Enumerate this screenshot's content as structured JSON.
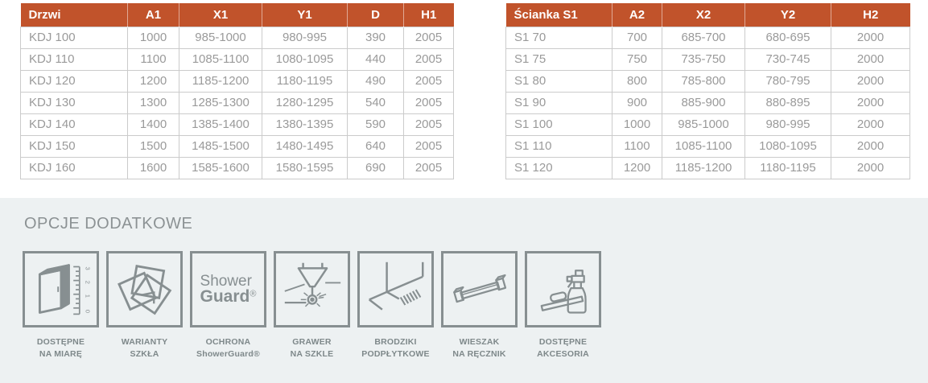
{
  "colors": {
    "header_bg": "#c1532b",
    "header_text": "#ffffff",
    "cell_text": "#9a9a9a",
    "table_border": "#cbcbcb",
    "options_section_bg": "#edf1f2",
    "icon_gray": "#878f91"
  },
  "tables": [
    {
      "name": "drzwi",
      "headers": [
        "Drzwi",
        "A1",
        "X1",
        "Y1",
        "D",
        "H1"
      ],
      "rows": [
        [
          "KDJ 100",
          "1000",
          "985-1000",
          "980-995",
          "390",
          "2005"
        ],
        [
          "KDJ 110",
          "1100",
          "1085-1100",
          "1080-1095",
          "440",
          "2005"
        ],
        [
          "KDJ 120",
          "1200",
          "1185-1200",
          "1180-1195",
          "490",
          "2005"
        ],
        [
          "KDJ 130",
          "1300",
          "1285-1300",
          "1280-1295",
          "540",
          "2005"
        ],
        [
          "KDJ 140",
          "1400",
          "1385-1400",
          "1380-1395",
          "590",
          "2005"
        ],
        [
          "KDJ 150",
          "1500",
          "1485-1500",
          "1480-1495",
          "640",
          "2005"
        ],
        [
          "KDJ 160",
          "1600",
          "1585-1600",
          "1580-1595",
          "690",
          "2005"
        ]
      ]
    },
    {
      "name": "scianka-s1",
      "headers": [
        "Ścianka S1",
        "A2",
        "X2",
        "Y2",
        "H2"
      ],
      "rows": [
        [
          "S1 70",
          "700",
          "685-700",
          "680-695",
          "2000"
        ],
        [
          "S1 75",
          "750",
          "735-750",
          "730-745",
          "2000"
        ],
        [
          "S1 80",
          "800",
          "785-800",
          "780-795",
          "2000"
        ],
        [
          "S1 90",
          "900",
          "885-900",
          "880-895",
          "2000"
        ],
        [
          "S1 100",
          "1000",
          "985-1000",
          "980-995",
          "2000"
        ],
        [
          "S1 110",
          "1100",
          "1085-1100",
          "1080-1095",
          "2000"
        ],
        [
          "S1 120",
          "1200",
          "1185-1200",
          "1180-1195",
          "2000"
        ]
      ]
    }
  ],
  "options": {
    "title": "OPCJE DODATKOWE",
    "items": [
      {
        "icon": "custom-size-icon",
        "line1": "DOSTĘPNE",
        "line2": "NA MIARĘ"
      },
      {
        "icon": "glass-variants-icon",
        "line1": "WARIANTY",
        "line2": "SZKŁA"
      },
      {
        "icon": "showerguard-icon",
        "line1": "OCHRONA",
        "line2": "ShowerGuard®"
      },
      {
        "icon": "glass-engraving-icon",
        "line1": "GRAWER",
        "line2": "NA SZKLE"
      },
      {
        "icon": "under-tile-tray-icon",
        "line1": "BRODZIKI",
        "line2": "PODPŁYTKOWE"
      },
      {
        "icon": "towel-hanger-icon",
        "line1": "WIESZAK",
        "line2": "NA RĘCZNIK"
      },
      {
        "icon": "accessories-icon",
        "line1": "DOSTĘPNE",
        "line2": "AKCESORIA"
      }
    ],
    "showerguard_logo": {
      "line1": "Shower",
      "line2": "Guard",
      "registered": "®"
    },
    "ruler_numbers": [
      "3",
      "2",
      "1",
      "0"
    ]
  }
}
